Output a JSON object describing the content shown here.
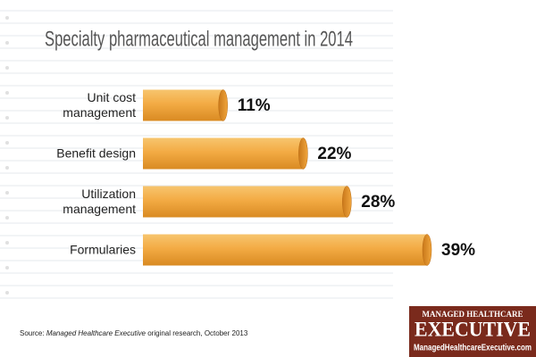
{
  "chart_data": {
    "type": "bar",
    "orientation": "horizontal",
    "title": "Specialty pharmaceutical management in 2014",
    "categories": [
      "Unit cost management",
      "Benefit design",
      "Utilization management",
      "Formularies"
    ],
    "values": [
      11,
      22,
      28,
      39
    ],
    "value_labels": [
      "11%",
      "22%",
      "28%",
      "39%"
    ],
    "color": "#f0a53c",
    "source_label": "Source:",
    "source_publication": "Managed Healthcare Executive",
    "source_text": "original research, October 2013"
  },
  "logo": {
    "top": "MANAGED HEALTHCARE",
    "name": "EXECUTIVE",
    "url": "ManagedHealthcareExecutive.com"
  }
}
